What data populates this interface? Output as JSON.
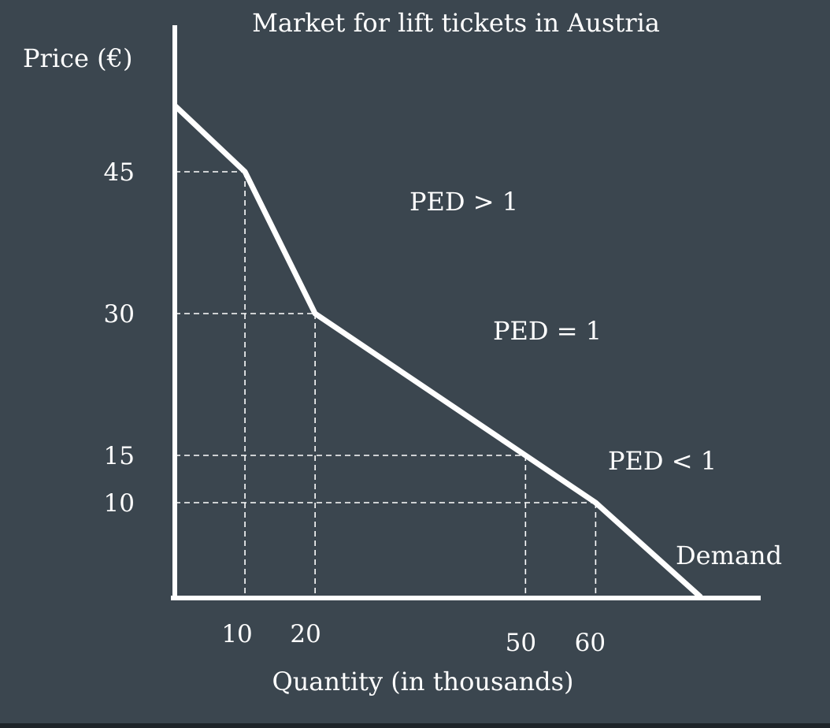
{
  "chart_data": {
    "type": "line",
    "title": "Market for lift tickets in Austria",
    "xlabel": "Quantity (in thousands)",
    "ylabel": "Price (€)",
    "xlim": [
      0,
      75
    ],
    "ylim": [
      0,
      55
    ],
    "grid": false,
    "x_ticks": [
      10,
      20,
      50,
      60
    ],
    "y_ticks": [
      45,
      30,
      15,
      10
    ],
    "series": [
      {
        "name": "Demand",
        "x": [
          0,
          10,
          20,
          50,
          60,
          75
        ],
        "y": [
          52,
          45,
          30,
          15,
          10,
          0
        ]
      }
    ],
    "reference_points": [
      {
        "x": 10,
        "y": 45
      },
      {
        "x": 20,
        "y": 30
      },
      {
        "x": 50,
        "y": 15
      },
      {
        "x": 60,
        "y": 10
      }
    ],
    "annotations": [
      {
        "text": "PED > 1"
      },
      {
        "text": "PED = 1"
      },
      {
        "text": "PED < 1"
      }
    ],
    "colors": {
      "background": "#3b464f",
      "foreground": "#ffffff"
    }
  }
}
